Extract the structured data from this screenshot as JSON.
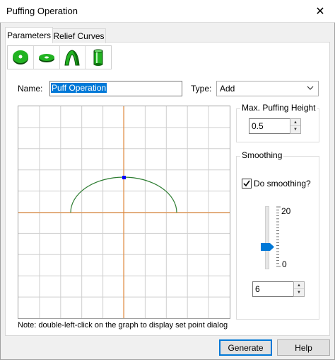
{
  "window": {
    "title": "Puffing Operation",
    "close_glyph": "✕"
  },
  "tabs": [
    {
      "label": "Parameters",
      "selected": true
    },
    {
      "label": "Relief Curves",
      "selected": false
    }
  ],
  "toolbar": {
    "tools": [
      "disc-icon",
      "ring-icon",
      "arch-icon",
      "cylinder-icon"
    ],
    "accent": "#1a9a1a"
  },
  "form": {
    "name_label": "Name:",
    "name_value": "Puff Operation",
    "type_label": "Type:",
    "type_value": "Add"
  },
  "graph": {
    "grid_color": "#cfcfcf",
    "axis_color": "#e67e22",
    "curve_color": "#2e7d32",
    "point_color": "#0000ff",
    "note": "Note: double-left-click on the graph to display set point dialog"
  },
  "max_height": {
    "title": "Max. Puffing Height",
    "value": "0.5"
  },
  "smoothing": {
    "title": "Smoothing",
    "checkbox_label": "Do smoothing?",
    "checked": true,
    "slider_max": "20",
    "slider_min": "0",
    "value": "6",
    "slider_value": 6
  },
  "buttons": {
    "generate": "Generate",
    "help": "Help"
  }
}
